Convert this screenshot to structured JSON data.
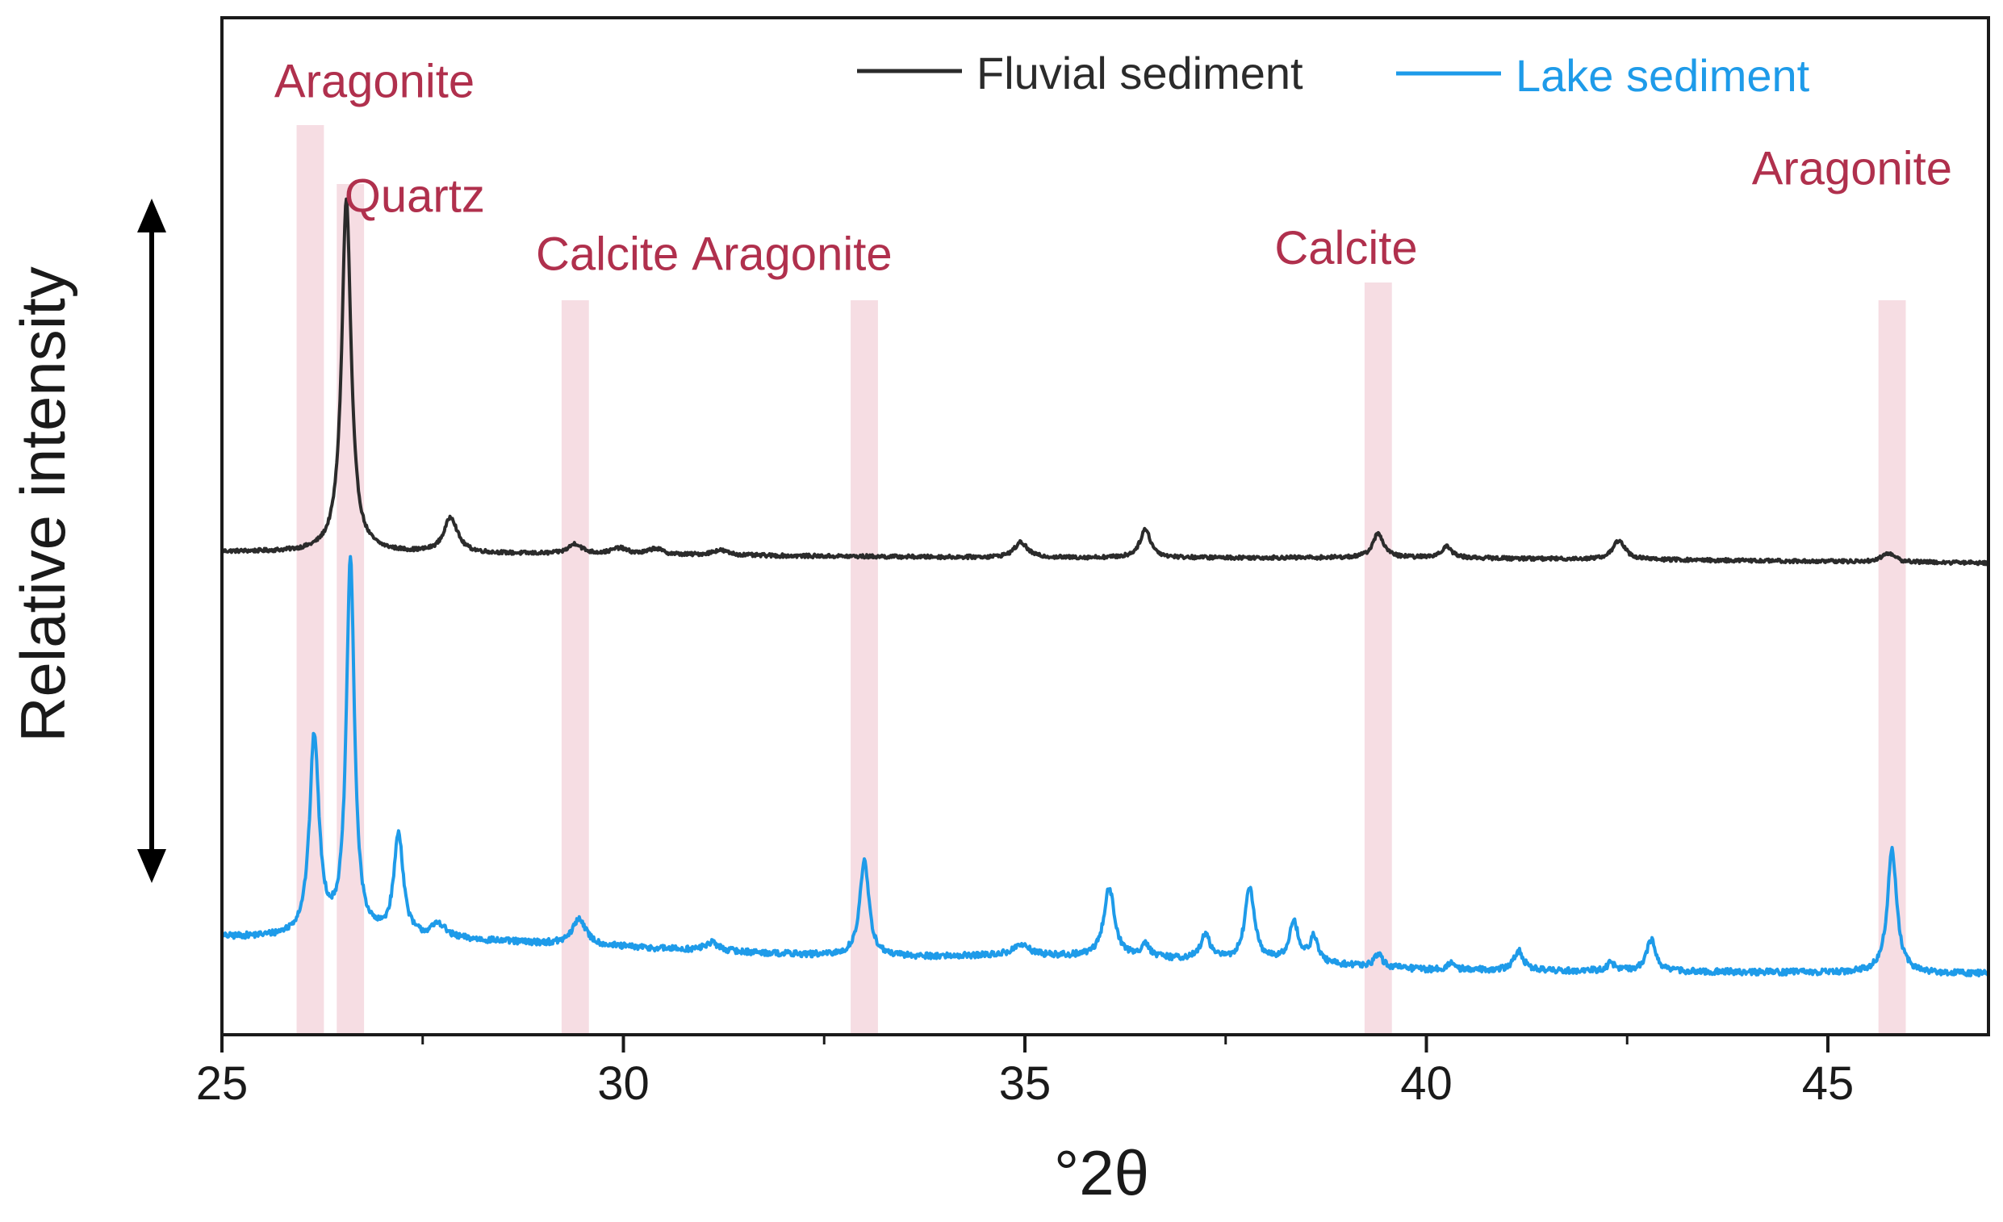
{
  "chart_data": {
    "type": "line",
    "title": "",
    "xlabel": "°2θ",
    "ylabel": "Relative intensity",
    "xlim": [
      25,
      47
    ],
    "ylim": [
      0,
      100
    ],
    "xticks": [
      25,
      30,
      35,
      40,
      45
    ],
    "minor_xticks": [
      27.5,
      32.5,
      37.5,
      42.5
    ],
    "y_ticks_shown": false,
    "grid": false,
    "legend": {
      "placement": "top-right",
      "entries": [
        {
          "name": "Fluvial sediment",
          "color": "#2b2b2b"
        },
        {
          "name": "Lake sediment",
          "color": "#1e9be9"
        }
      ]
    },
    "band_color": "#f6dde3",
    "annotation_color": "#b0304d",
    "bands": [
      {
        "center": 26.1
      },
      {
        "center": 26.6
      },
      {
        "center": 29.4
      },
      {
        "center": 33.0
      },
      {
        "center": 39.4
      },
      {
        "center": 45.8
      }
    ],
    "annotations": [
      {
        "text": "Aragonite",
        "x": 26.9,
        "y": 92.2
      },
      {
        "text": "Quartz",
        "x": 27.4,
        "y": 80.9
      },
      {
        "text": "Calcite",
        "x": 29.8,
        "y": 75.2
      },
      {
        "text": "Aragonite",
        "x": 32.1,
        "y": 75.2
      },
      {
        "text": "Calcite",
        "x": 39.0,
        "y": 75.8
      },
      {
        "text": "Aragonite",
        "x": 45.3,
        "y": 83.6
      }
    ],
    "series": [
      {
        "name": "Fluvial sediment",
        "color": "#2b2b2b",
        "baseline": [
          [
            25.0,
            47.5
          ],
          [
            30.0,
            47.2
          ],
          [
            35.0,
            46.9
          ],
          [
            40.0,
            46.9
          ],
          [
            47.0,
            46.4
          ]
        ],
        "peaks": [
          {
            "x": 26.55,
            "h": 34.7,
            "w": 0.07
          },
          {
            "x": 27.85,
            "h": 3.5,
            "w": 0.1
          },
          {
            "x": 29.4,
            "h": 1.0,
            "w": 0.1
          },
          {
            "x": 29.95,
            "h": 0.6,
            "w": 0.12
          },
          {
            "x": 30.4,
            "h": 0.6,
            "w": 0.1
          },
          {
            "x": 31.2,
            "h": 0.5,
            "w": 0.12
          },
          {
            "x": 34.95,
            "h": 1.5,
            "w": 0.1
          },
          {
            "x": 36.5,
            "h": 2.8,
            "w": 0.08
          },
          {
            "x": 39.4,
            "h": 2.4,
            "w": 0.08
          },
          {
            "x": 40.25,
            "h": 1.1,
            "w": 0.08
          },
          {
            "x": 42.4,
            "h": 1.9,
            "w": 0.09
          },
          {
            "x": 45.75,
            "h": 0.9,
            "w": 0.09
          }
        ]
      },
      {
        "name": "Lake sediment",
        "color": "#1e9be9",
        "baseline": [
          [
            25.0,
            9.6
          ],
          [
            28.0,
            9.3
          ],
          [
            30.0,
            8.6
          ],
          [
            33.0,
            7.6
          ],
          [
            35.0,
            7.8
          ],
          [
            38.0,
            7.2
          ],
          [
            40.0,
            6.4
          ],
          [
            43.0,
            6.2
          ],
          [
            47.0,
            6.0
          ]
        ],
        "peaks": [
          {
            "x": 26.15,
            "h": 19.6,
            "w": 0.07
          },
          {
            "x": 26.6,
            "h": 37.0,
            "w": 0.06
          },
          {
            "x": 27.2,
            "h": 10.1,
            "w": 0.07
          },
          {
            "x": 27.7,
            "h": 1.4,
            "w": 0.1
          },
          {
            "x": 29.45,
            "h": 2.6,
            "w": 0.1
          },
          {
            "x": 31.1,
            "h": 0.8,
            "w": 0.1
          },
          {
            "x": 33.0,
            "h": 9.4,
            "w": 0.07
          },
          {
            "x": 34.95,
            "h": 1.0,
            "w": 0.12
          },
          {
            "x": 36.05,
            "h": 6.8,
            "w": 0.08
          },
          {
            "x": 36.5,
            "h": 1.4,
            "w": 0.06
          },
          {
            "x": 37.25,
            "h": 2.4,
            "w": 0.07
          },
          {
            "x": 37.8,
            "h": 7.2,
            "w": 0.07
          },
          {
            "x": 38.35,
            "h": 3.9,
            "w": 0.07
          },
          {
            "x": 38.6,
            "h": 2.5,
            "w": 0.06
          },
          {
            "x": 39.4,
            "h": 1.2,
            "w": 0.06
          },
          {
            "x": 40.3,
            "h": 0.6,
            "w": 0.06
          },
          {
            "x": 41.15,
            "h": 1.9,
            "w": 0.07
          },
          {
            "x": 42.3,
            "h": 0.8,
            "w": 0.06
          },
          {
            "x": 42.8,
            "h": 3.1,
            "w": 0.07
          },
          {
            "x": 45.8,
            "h": 12.1,
            "w": 0.07
          }
        ]
      }
    ]
  }
}
